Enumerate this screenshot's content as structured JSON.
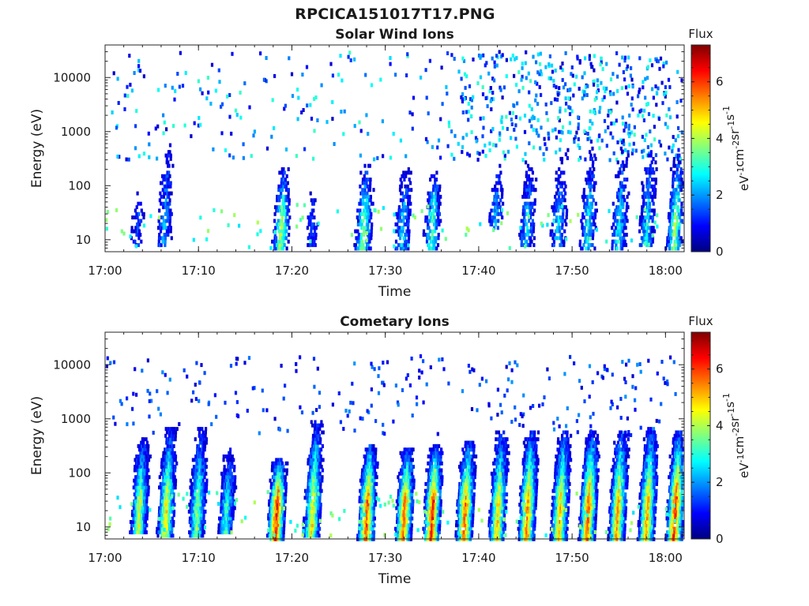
{
  "figure": {
    "title": "RPCICA151017T17.PNG"
  },
  "colors": {
    "axis": "#262626",
    "colormap": [
      "#00007f",
      "#0000ff",
      "#0080ff",
      "#00ffff",
      "#80ff80",
      "#ffff00",
      "#ff8000",
      "#ff0000",
      "#7f0000"
    ]
  },
  "colorbar": {
    "label": "Flux",
    "unit_base": "eV",
    "unit_parts": [
      {
        "base": "eV",
        "exp": "-1"
      },
      {
        "base": "cm",
        "exp": "-2"
      },
      {
        "base": "sr",
        "exp": "-1"
      },
      {
        "base": "s",
        "exp": "-1"
      }
    ],
    "range": [
      0,
      7.3
    ],
    "ticks": [
      "0",
      "2",
      "4",
      "6"
    ]
  },
  "chart_data": [
    {
      "type": "heatmap",
      "title": "Solar Wind Ions",
      "xlabel": "Time",
      "ylabel": "Energy (eV)",
      "x_range": [
        "17:00",
        "18:02"
      ],
      "x_ticks": [
        "17:00",
        "17:10",
        "17:20",
        "17:30",
        "17:40",
        "17:50",
        "18:00"
      ],
      "y_scale": "log",
      "ylim": [
        6,
        40000
      ],
      "y_ticks": [
        "10",
        "100",
        "1000",
        "10000"
      ],
      "zlim": [
        0,
        7.3
      ],
      "features": [
        {
          "time": "17:03:20",
          "energy_range": [
            10,
            100
          ],
          "peak_flux": 1.8,
          "note": "sparse"
        },
        {
          "time": "17:06:10",
          "energy_range": [
            10,
            800
          ],
          "peak_flux": 2.8
        },
        {
          "time": "17:18:40",
          "energy_range": [
            8,
            220
          ],
          "peak_flux": 4.6
        },
        {
          "time": "17:22:00",
          "energy_range": [
            10,
            150
          ],
          "peak_flux": 1.7
        },
        {
          "time": "17:27:30",
          "energy_range": [
            8,
            250
          ],
          "peak_flux": 4.3
        },
        {
          "time": "17:31:40",
          "energy_range": [
            8,
            250
          ],
          "peak_flux": 3.0
        },
        {
          "time": "17:34:50",
          "energy_range": [
            8,
            200
          ],
          "peak_flux": 4.0
        },
        {
          "time": "17:41:40",
          "energy_range": [
            20,
            300
          ],
          "peak_flux": 2.9
        },
        {
          "time": "17:45:00",
          "energy_range": [
            10,
            350
          ],
          "peak_flux": 3.2
        },
        {
          "time": "17:48:20",
          "energy_range": [
            10,
            350
          ],
          "peak_flux": 3.1
        },
        {
          "time": "17:51:30",
          "energy_range": [
            8,
            500
          ],
          "peak_flux": 3.4
        },
        {
          "time": "17:54:50",
          "energy_range": [
            8,
            500
          ],
          "peak_flux": 3.4
        },
        {
          "time": "17:57:50",
          "energy_range": [
            10,
            600
          ],
          "peak_flux": 3.3
        },
        {
          "time": "18:00:50",
          "energy_range": [
            8,
            400
          ],
          "peak_flux": 4.5
        }
      ],
      "background": {
        "energy_range": [
          300,
          30000
        ],
        "flux_range": [
          0.5,
          3.2
        ],
        "note": "scattered points, denser after 17:38"
      }
    },
    {
      "type": "heatmap",
      "title": "Cometary Ions",
      "xlabel": "Time",
      "ylabel": "Energy (eV)",
      "x_range": [
        "17:00",
        "18:02"
      ],
      "x_ticks": [
        "17:00",
        "17:10",
        "17:20",
        "17:30",
        "17:40",
        "17:50",
        "18:00"
      ],
      "y_scale": "log",
      "ylim": [
        6,
        40000
      ],
      "y_ticks": [
        "10",
        "100",
        "1000",
        "10000"
      ],
      "zlim": [
        0,
        7.3
      ],
      "features": [
        {
          "time": "17:03:30",
          "energy_range": [
            10,
            450
          ],
          "peak_flux": 5.0
        },
        {
          "time": "17:06:20",
          "energy_range": [
            8,
            700
          ],
          "peak_flux": 5.4
        },
        {
          "time": "17:09:40",
          "energy_range": [
            8,
            700
          ],
          "peak_flux": 4.6
        },
        {
          "time": "17:12:50",
          "energy_range": [
            10,
            300
          ],
          "peak_flux": 3.8
        },
        {
          "time": "17:18:10",
          "energy_range": [
            7,
            200
          ],
          "peak_flux": 7.0
        },
        {
          "time": "17:22:00",
          "energy_range": [
            8,
            900
          ],
          "peak_flux": 5.4
        },
        {
          "time": "17:27:50",
          "energy_range": [
            7,
            350
          ],
          "peak_flux": 6.6
        },
        {
          "time": "17:31:50",
          "energy_range": [
            7,
            300
          ],
          "peak_flux": 6.4
        },
        {
          "time": "17:34:50",
          "energy_range": [
            7,
            350
          ],
          "peak_flux": 6.8
        },
        {
          "time": "17:38:20",
          "energy_range": [
            7,
            400
          ],
          "peak_flux": 6.4
        },
        {
          "time": "17:41:50",
          "energy_range": [
            7,
            600
          ],
          "peak_flux": 5.6
        },
        {
          "time": "17:45:00",
          "energy_range": [
            7,
            600
          ],
          "peak_flux": 6.2
        },
        {
          "time": "17:48:30",
          "energy_range": [
            7,
            600
          ],
          "peak_flux": 5.8
        },
        {
          "time": "17:51:30",
          "energy_range": [
            7,
            600
          ],
          "peak_flux": 6.4
        },
        {
          "time": "17:54:40",
          "energy_range": [
            7,
            600
          ],
          "peak_flux": 6.0
        },
        {
          "time": "17:57:50",
          "energy_range": [
            7,
            700
          ],
          "peak_flux": 6.0
        },
        {
          "time": "18:00:50",
          "energy_range": [
            7,
            600
          ],
          "peak_flux": 6.9
        }
      ],
      "background": {
        "energy_range": [
          500,
          15000
        ],
        "flux_range": [
          0.5,
          2.0
        ],
        "note": "sparse scattered points"
      }
    }
  ]
}
